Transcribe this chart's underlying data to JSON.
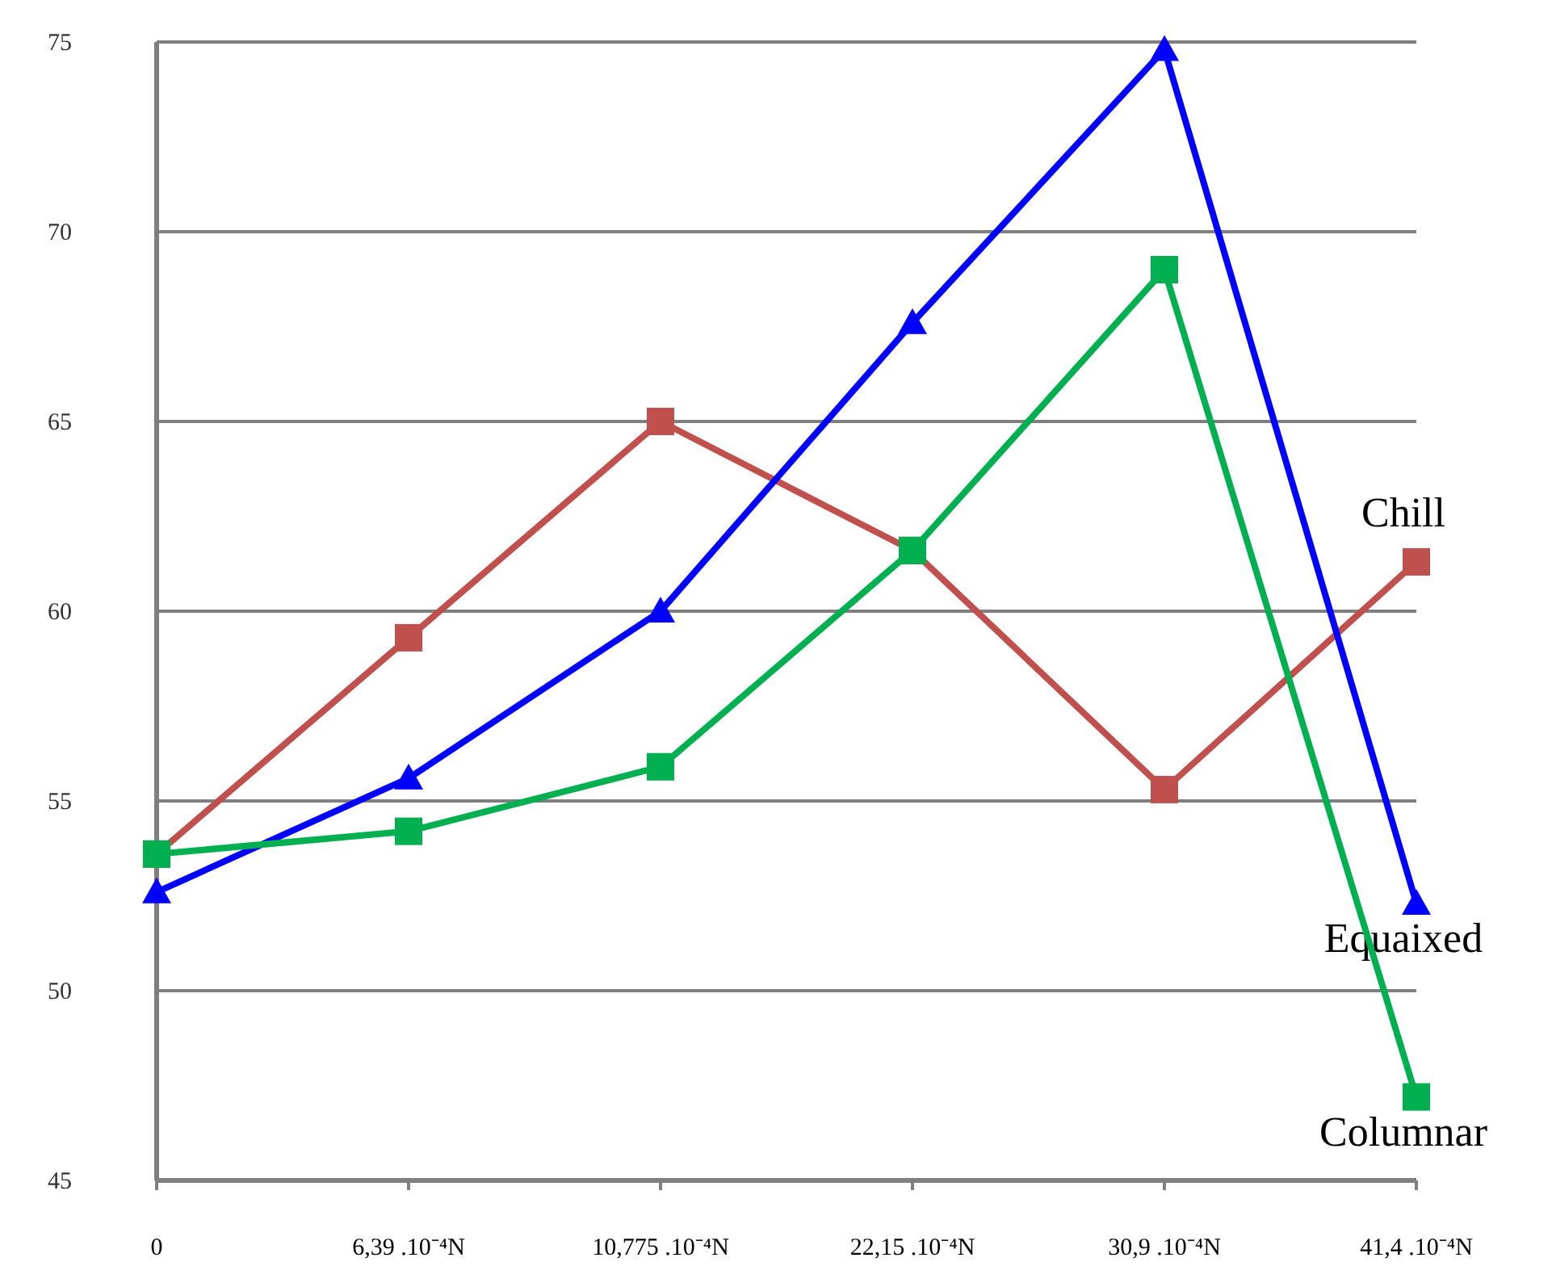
{
  "chart_data": {
    "type": "line",
    "categories": [
      "0",
      "6,39 .10⁻⁴N",
      "10,775 .10⁻⁴N",
      "22,15  .10⁻⁴N",
      "30,9  .10⁻⁴N",
      "41,4  .10⁻⁴N"
    ],
    "series": [
      {
        "name": "Chill",
        "color": "#c0504d",
        "marker": "square",
        "values": [
          53.6,
          59.3,
          65.0,
          61.6,
          55.3,
          61.3
        ]
      },
      {
        "name": "Equaixed",
        "color": "#0000ff",
        "marker": "triangle",
        "values": [
          52.6,
          55.6,
          60.0,
          67.6,
          74.8,
          52.3
        ]
      },
      {
        "name": "Columnar",
        "color": "#00b050",
        "marker": "square",
        "values": [
          53.6,
          54.2,
          55.9,
          61.6,
          69.0,
          47.2
        ]
      }
    ],
    "ylim": [
      45,
      75
    ],
    "yticks": [
      45,
      50,
      55,
      60,
      65,
      70,
      75
    ],
    "grid": "y",
    "line_style": "solid"
  }
}
